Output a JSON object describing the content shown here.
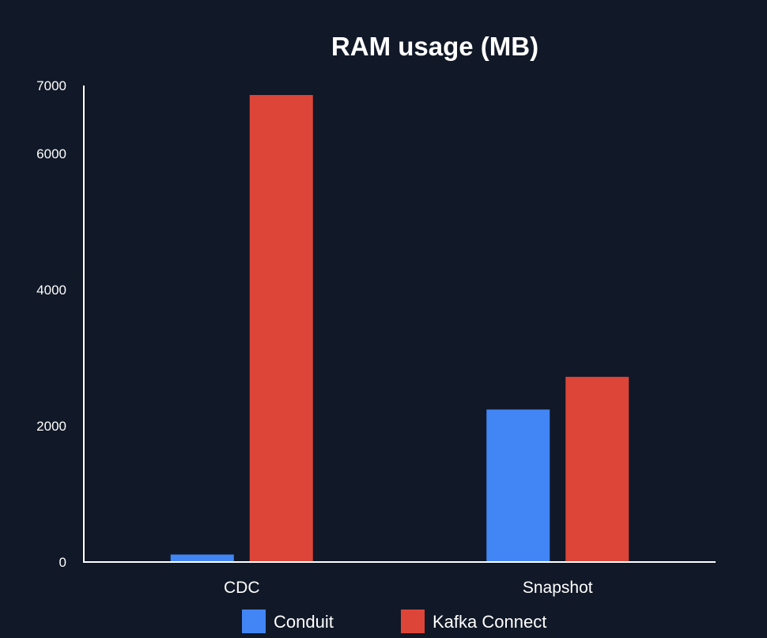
{
  "chart_data": {
    "type": "bar",
    "title": "RAM usage (MB)",
    "xlabel": "",
    "ylabel": "",
    "categories": [
      "CDC",
      "Snapshot"
    ],
    "series": [
      {
        "name": "Conduit",
        "color": "#4285f4",
        "values": [
          110,
          2240
        ]
      },
      {
        "name": "Kafka Connect",
        "color": "#dd4539",
        "values": [
          6860,
          2720
        ]
      }
    ],
    "yticks": [
      0,
      2000,
      4000,
      6000,
      7000
    ],
    "ylim": [
      0,
      7000
    ],
    "grid": false,
    "legend_position": "bottom"
  }
}
